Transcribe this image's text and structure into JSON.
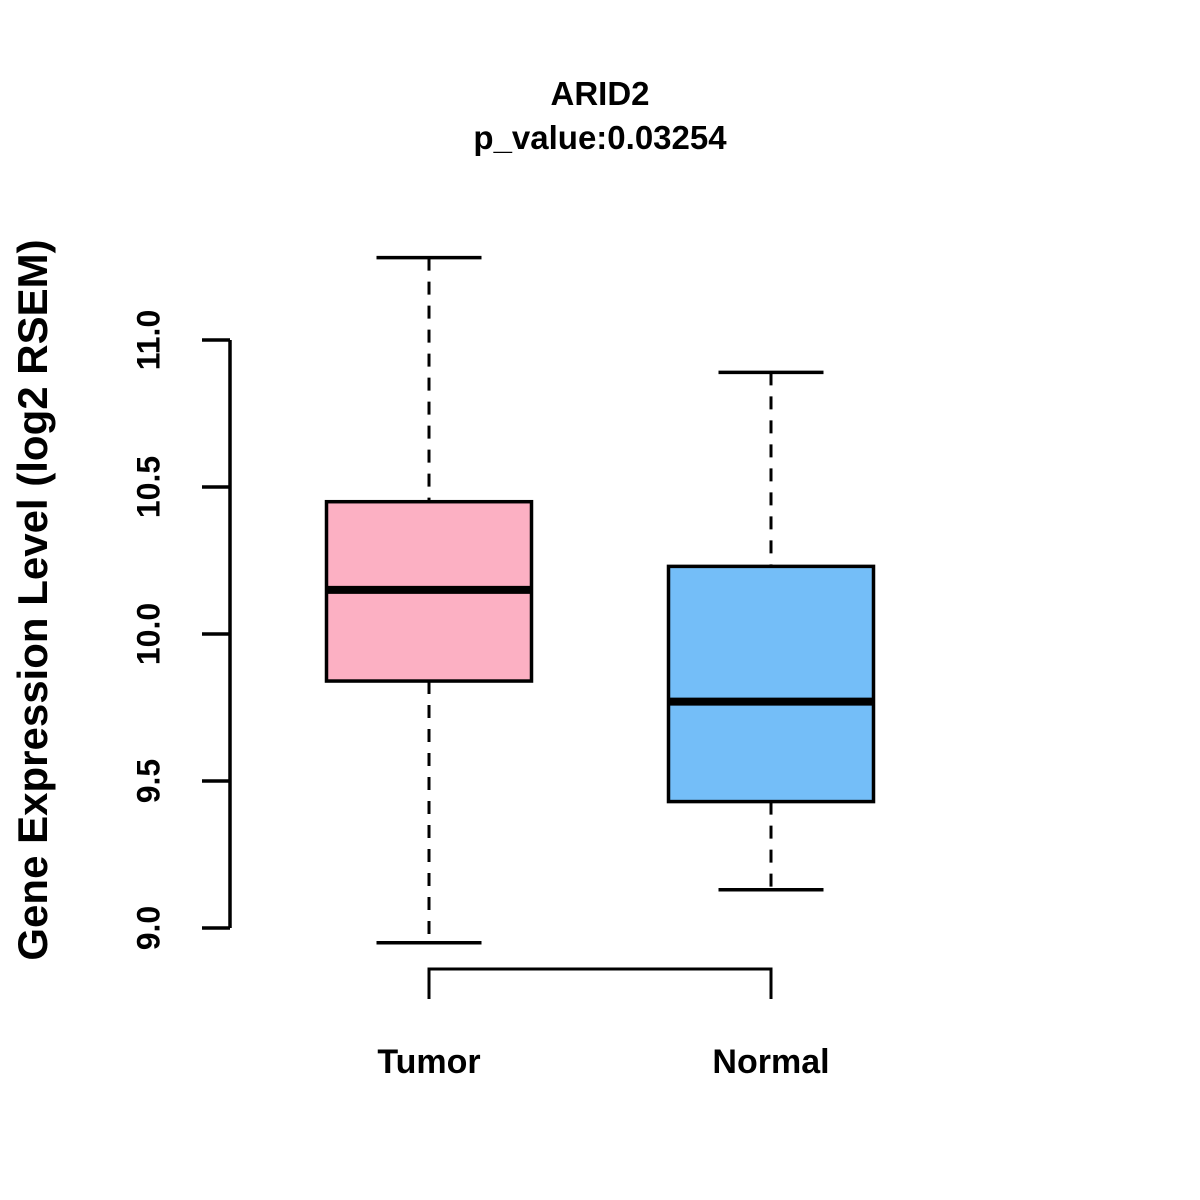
{
  "title": "ARID2",
  "subtitle": "p_value:0.03254",
  "y_axis": {
    "label": "Gene Expression Level (log2 RSEM)",
    "tick_labels": [
      "9.0",
      "9.5",
      "10.0",
      "10.5",
      "11.0"
    ]
  },
  "x_axis": {
    "categories": [
      "Tumor",
      "Normal"
    ]
  },
  "colors": {
    "tumor_box": "#FCB0C3",
    "normal_box": "#74BEF8",
    "stroke": "#000000",
    "background": "#FFFFFF"
  },
  "chart_data": {
    "type": "boxplot",
    "title": "ARID2",
    "subtitle": "p_value:0.03254",
    "ylabel": "Gene Expression Level (log2 RSEM)",
    "xlabel": "",
    "categories": [
      "Tumor",
      "Normal"
    ],
    "ylim": [
      8.8,
      11.4
    ],
    "yticks": [
      {
        "value": 9.0,
        "label": "9.0"
      },
      {
        "value": 9.5,
        "label": "9.5"
      },
      {
        "value": 10.0,
        "label": "10.0"
      },
      {
        "value": 10.5,
        "label": "10.5"
      },
      {
        "value": 11.0,
        "label": "11.0"
      }
    ],
    "grid": false,
    "legend": "none",
    "series": [
      {
        "name": "Tumor",
        "color": "#FCB0C3",
        "whisker_low": 8.95,
        "q1": 9.84,
        "median": 10.15,
        "q3": 10.45,
        "whisker_high": 11.28
      },
      {
        "name": "Normal",
        "color": "#74BEF8",
        "whisker_low": 9.13,
        "q1": 9.43,
        "median": 9.77,
        "q3": 10.23,
        "whisker_high": 10.89
      }
    ],
    "annotations": [
      "comparison bracket between Tumor and Normal"
    ]
  }
}
